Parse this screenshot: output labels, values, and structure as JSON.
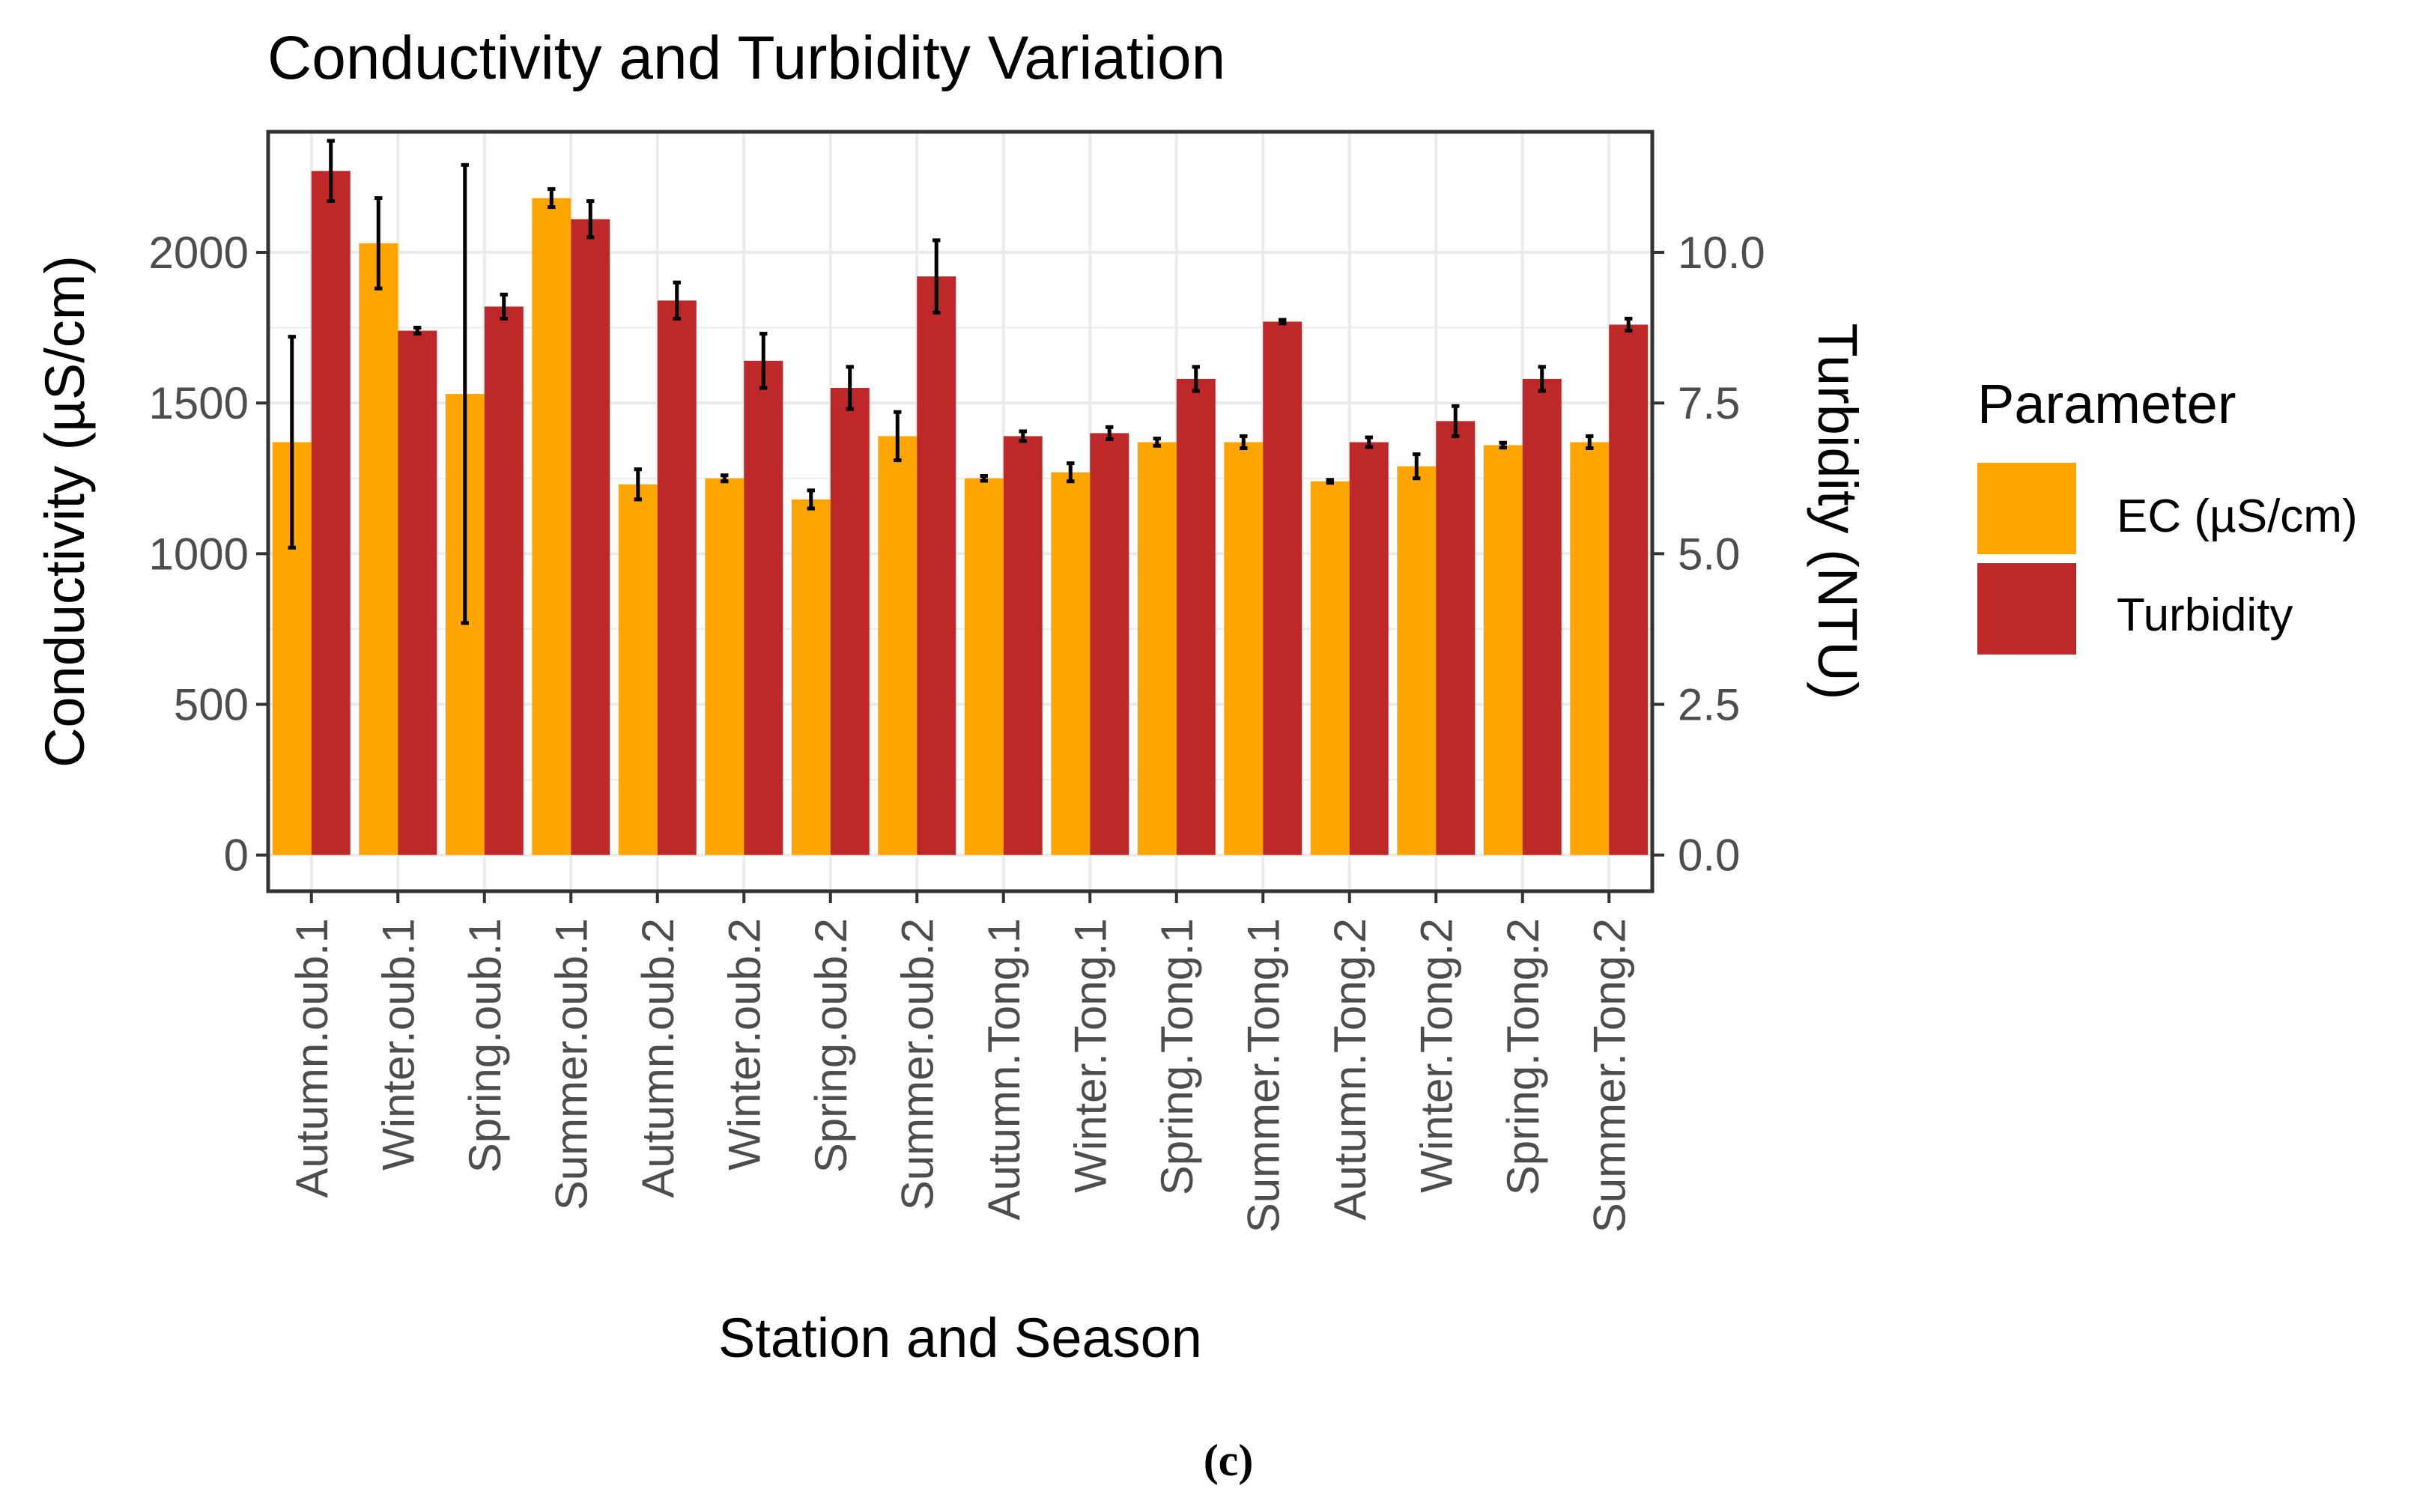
{
  "caption": "(c)",
  "legend": {
    "title": "Parameter"
  },
  "colors": {
    "ec": "#FFA500",
    "turbidity": "#BE2828",
    "grid": "#EBEBEB",
    "axis": "#333333",
    "text": "#000000",
    "tick_text": "#4D4D4D"
  },
  "chart_data": {
    "type": "bar",
    "title": "Conductivity and Turbidity Variation",
    "xlabel": "Station and Season",
    "ylabel": "Conductivity (µS/cm)",
    "y2label": "Turbidity (NTU)",
    "ylim": [
      -120,
      2400
    ],
    "y2lim": [
      -0.6,
      12.0
    ],
    "yticks": [
      0,
      500,
      1000,
      1500,
      2000
    ],
    "ytick_labels": [
      "0",
      "500",
      "1000",
      "1500",
      "2000"
    ],
    "y2ticks": [
      0,
      2.5,
      5,
      7.5,
      10
    ],
    "y2tick_labels": [
      "0.0",
      "2.5",
      "5.0",
      "7.5",
      "10.0"
    ],
    "categories": [
      "Autumn.oub.1",
      "Winter.oub.1",
      "Spring.oub.1",
      "Summer.oub.1",
      "Autumn.oub.2",
      "Winter.oub.2",
      "Spring.oub.2",
      "Summer.oub.2",
      "Autumn.Tong.1",
      "Winter.Tong.1",
      "Spring.Tong.1",
      "Summer.Tong.1",
      "Autumn.Tong.2",
      "Winter.Tong.2",
      "Spring.Tong.2",
      "Summer.Tong.2"
    ],
    "legend_position": "right",
    "series": [
      {
        "name": "EC (µS/cm)",
        "axis": "left",
        "values": [
          1370,
          2030,
          1530,
          2180,
          1230,
          1250,
          1180,
          1390,
          1250,
          1270,
          1370,
          1370,
          1240,
          1290,
          1360,
          1370
        ],
        "error": [
          350,
          150,
          760,
          30,
          50,
          10,
          30,
          80,
          8,
          30,
          12,
          20,
          5,
          40,
          8,
          20
        ]
      },
      {
        "name": "Turbidity",
        "axis": "right",
        "values": [
          11.35,
          8.7,
          9.1,
          10.55,
          9.2,
          8.2,
          7.75,
          9.6,
          6.95,
          7.0,
          7.9,
          8.85,
          6.85,
          7.2,
          7.9,
          8.8
        ],
        "error": [
          0.5,
          0.05,
          0.2,
          0.3,
          0.3,
          0.45,
          0.35,
          0.6,
          0.08,
          0.1,
          0.2,
          0.03,
          0.08,
          0.25,
          0.2,
          0.1
        ]
      }
    ]
  }
}
